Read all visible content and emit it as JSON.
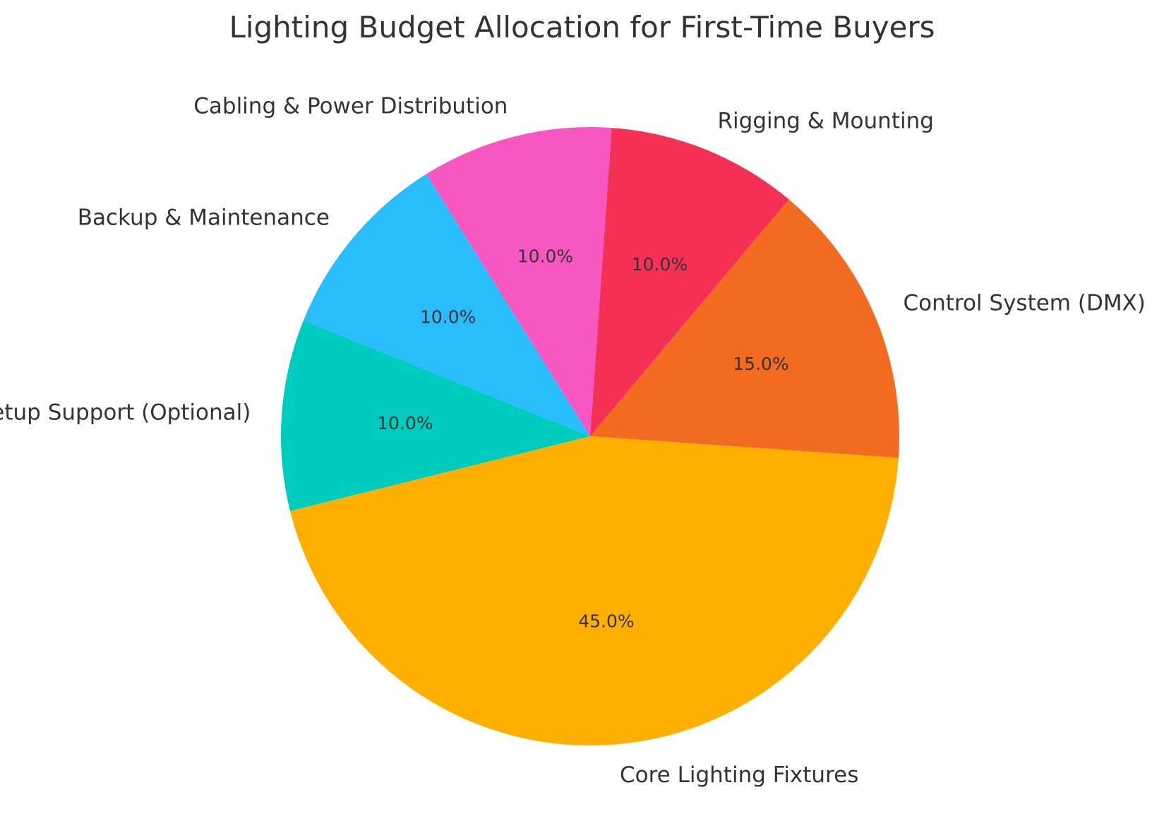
{
  "chart_data": {
    "type": "pie",
    "title": "Lighting Budget Allocation for First-Time Buyers",
    "slices": [
      {
        "label": "Control System (DMX)",
        "value": 15.0,
        "pct_label": "15.0%",
        "color": "#F26B21"
      },
      {
        "label": "Rigging & Mounting",
        "value": 10.0,
        "pct_label": "10.0%",
        "color": "#F53055"
      },
      {
        "label": "Cabling & Power Distribution",
        "value": 10.0,
        "pct_label": "10.0%",
        "color": "#F857C1"
      },
      {
        "label": "Backup & Maintenance",
        "value": 10.0,
        "pct_label": "10.0%",
        "color": "#29BDFD"
      },
      {
        "label": "Training/Setup Support (Optional)",
        "value": 10.0,
        "pct_label": "10.0%",
        "color": "#00CBBF"
      },
      {
        "label": "Core Lighting Fixtures",
        "value": 45.0,
        "pct_label": "45.0%",
        "color": "#FFAF00"
      }
    ]
  }
}
